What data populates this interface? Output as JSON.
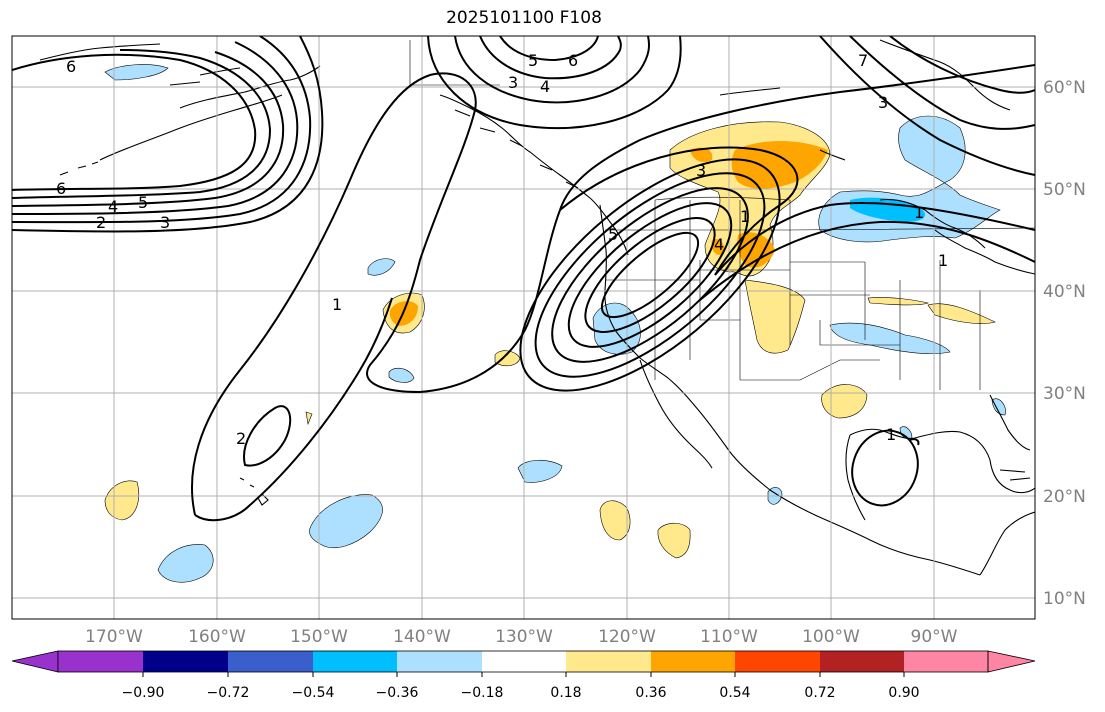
{
  "title": "2025101100 F108",
  "map": {
    "lon_ticks": [
      "170°W",
      "160°W",
      "150°W",
      "140°W",
      "130°W",
      "120°W",
      "110°W",
      "100°W",
      "90°W"
    ],
    "lat_ticks": [
      "60°N",
      "50°N",
      "40°N",
      "30°N",
      "20°N",
      "10°N"
    ],
    "contour_labels": [
      "6",
      "5",
      "3",
      "4",
      "6",
      "6",
      "4",
      "5",
      "2",
      "3",
      "1",
      "2",
      "3",
      "1",
      "4",
      "5",
      "7",
      "3",
      "1",
      "1",
      "1"
    ],
    "colors": {
      "neg_lightblue": "#addfff",
      "neg_blue": "#00bfff",
      "pos_yellow": "#ffe98c",
      "pos_orange": "#ffa500"
    }
  },
  "colorbar": {
    "ticks": [
      "−0.90",
      "−0.72",
      "−0.54",
      "−0.36",
      "−0.18",
      "0.18",
      "0.36",
      "0.54",
      "0.72",
      "0.90"
    ],
    "colors": [
      "#9932cc",
      "#00008b",
      "#3a5fcd",
      "#00bfff",
      "#addfff",
      "#ffffff",
      "#ffe98c",
      "#ffa500",
      "#ff4500",
      "#b22222",
      "#ff85a5"
    ]
  }
}
